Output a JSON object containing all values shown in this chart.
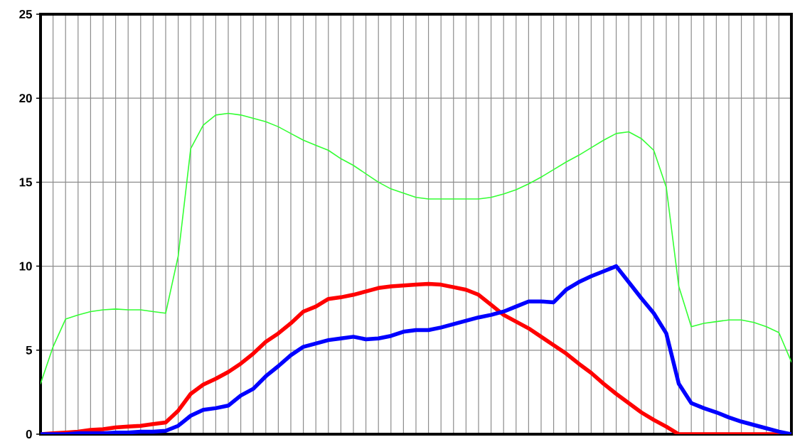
{
  "chart_data": {
    "type": "line",
    "ylim": [
      0,
      25
    ],
    "yticks": [
      0,
      5,
      10,
      15,
      20,
      25
    ],
    "grid": true,
    "categories": [
      null,
      null,
      null,
      null,
      null,
      null,
      null,
      null,
      null,
      null,
      null,
      null,
      null,
      null,
      null,
      null,
      null,
      null,
      null,
      null,
      null,
      null,
      null,
      null,
      null,
      null,
      null,
      null,
      null,
      null,
      null,
      null,
      null,
      null,
      null,
      null,
      null,
      null,
      null,
      null,
      null,
      null,
      null,
      null,
      null,
      null,
      null,
      null,
      null,
      null,
      null,
      null,
      null,
      null,
      null,
      null,
      null,
      null,
      null,
      null,
      null
    ],
    "series": [
      {
        "color": "#33ff33",
        "values": [
          3.0,
          5.2,
          6.85,
          7.1,
          7.3,
          7.4,
          7.45,
          7.4,
          7.4,
          7.3,
          7.2,
          10.6,
          17.0,
          18.4,
          19.0,
          19.1,
          19.0,
          18.8,
          18.6,
          18.3,
          17.9,
          17.5,
          17.2,
          16.9,
          16.4,
          16.0,
          15.5,
          15.0,
          14.6,
          14.35,
          14.1,
          14.0,
          14.0,
          14.0,
          14.0,
          14.0,
          14.1,
          14.3,
          14.55,
          14.9,
          15.3,
          15.75,
          16.2,
          16.6,
          17.05,
          17.5,
          17.9,
          18.0,
          17.6,
          16.9,
          14.7,
          8.8,
          6.4,
          6.6,
          6.7,
          6.8,
          6.8,
          6.65,
          6.4,
          6.05,
          4.3
        ]
      },
      {
        "color": "#ff0000",
        "values": [
          0.0,
          0.05,
          0.1,
          0.15,
          0.25,
          0.3,
          0.4,
          0.45,
          0.5,
          0.6,
          0.7,
          1.4,
          2.4,
          2.95,
          3.3,
          3.7,
          4.2,
          4.8,
          5.5,
          6.0,
          6.6,
          7.3,
          7.6,
          8.05,
          8.15,
          8.3,
          8.5,
          8.7,
          8.8,
          8.85,
          8.9,
          8.95,
          8.9,
          8.75,
          8.6,
          8.3,
          7.7,
          7.1,
          6.7,
          6.3,
          5.8,
          5.3,
          4.8,
          4.2,
          3.65,
          3.0,
          2.4,
          1.85,
          1.3,
          0.85,
          0.45,
          0.0,
          0.0,
          0.0,
          0.0,
          0.0,
          0.0,
          0.0,
          0.0,
          0.0,
          0.0
        ]
      },
      {
        "color": "#0000ff",
        "values": [
          0.0,
          0.0,
          0.0,
          0.05,
          0.05,
          0.05,
          0.1,
          0.1,
          0.15,
          0.15,
          0.2,
          0.5,
          1.1,
          1.45,
          1.55,
          1.7,
          2.3,
          2.7,
          3.45,
          4.05,
          4.7,
          5.2,
          5.4,
          5.6,
          5.7,
          5.8,
          5.65,
          5.7,
          5.85,
          6.1,
          6.2,
          6.2,
          6.35,
          6.55,
          6.75,
          6.95,
          7.1,
          7.3,
          7.6,
          7.9,
          7.9,
          7.85,
          8.6,
          9.05,
          9.4,
          9.7,
          10.0,
          9.05,
          8.1,
          7.2,
          6.0,
          3.0,
          1.85,
          1.55,
          1.3,
          1.0,
          0.75,
          0.55,
          0.35,
          0.15,
          0.0
        ]
      }
    ]
  }
}
